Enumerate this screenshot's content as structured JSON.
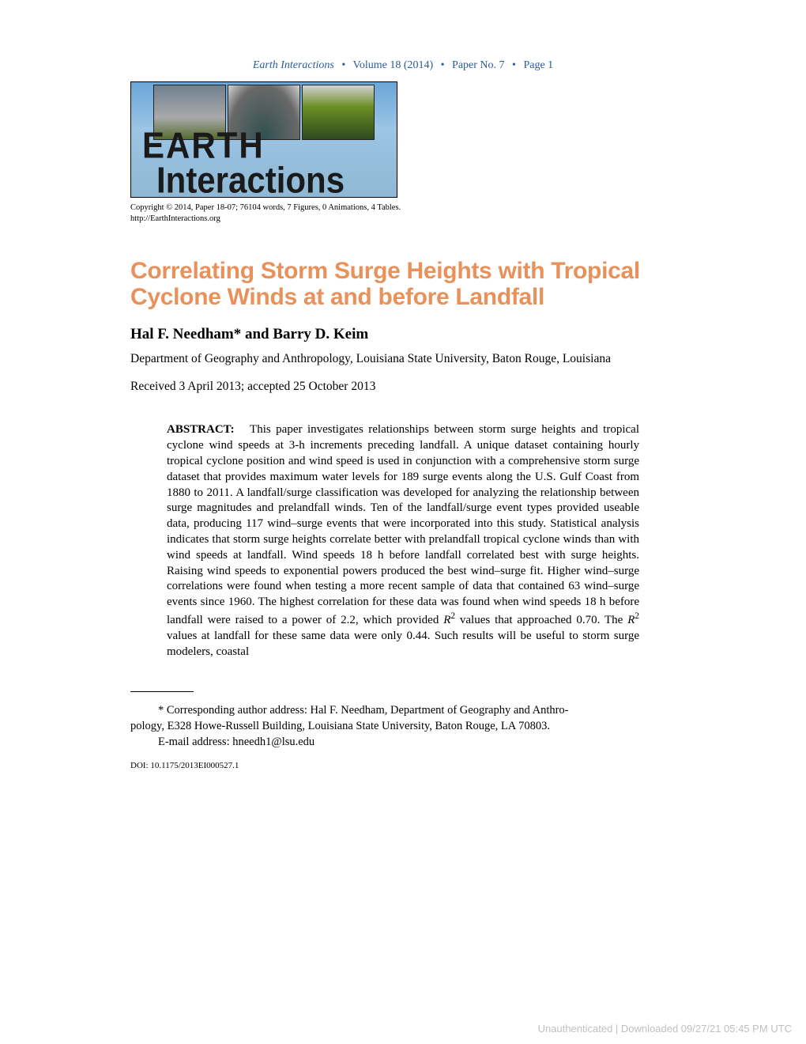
{
  "running_header": {
    "journal": "Earth Interactions",
    "volume": "Volume 18 (2014)",
    "paper_no": "Paper No. 7",
    "page": "Page 1",
    "color": "#2a5a9e"
  },
  "logo": {
    "line1": "EARTH",
    "line2": "Interactions",
    "bg_gradient_top": "#6aa6d8",
    "bg_gradient_bottom": "#8fb8d4"
  },
  "copyright": {
    "line1": "Copyright © 2014, Paper 18-07; 76104 words, 7 Figures, 0 Animations, 4 Tables.",
    "line2": "http://EarthInteractions.org"
  },
  "title": "Correlating Storm Surge Heights with Tropical Cyclone Winds at and before Landfall",
  "title_color": "#e8915a",
  "authors": "Hal F. Needham* and Barry D. Keim",
  "affiliation": "Department of Geography and Anthropology, Louisiana State University, Baton Rouge, Louisiana",
  "dates": "Received 3 April 2013; accepted 25 October 2013",
  "abstract": {
    "label": "ABSTRACT:",
    "body_pre": "This paper investigates relationships between storm surge heights and tropical cyclone wind speeds at 3-h increments preceding landfall. A unique dataset containing hourly tropical cyclone position and wind speed is used in conjunction with a comprehensive storm surge dataset that provides maximum water levels for 189 surge events along the U.S. Gulf Coast from 1880 to 2011. A landfall/surge classification was developed for analyzing the relationship between surge magnitudes and prelandfall winds. Ten of the landfall/surge event types provided useable data, producing 117 wind–surge events that were incorporated into this study. Statistical analysis indicates that storm surge heights correlate better with prelandfall tropical cyclone winds than with wind speeds at landfall. Wind speeds 18 h before landfall correlated best with surge heights. Raising wind speeds to exponential powers produced the best wind–surge fit. Higher wind–surge correlations were found when testing a more recent sample of data that contained 63 wind–surge events since 1960. The highest correlation for these data was found when wind speeds 18 h before landfall were raised to a power of 2.2, which provided ",
    "r2_a": "R",
    "body_mid": " values that approached 0.70. The ",
    "r2_b": "R",
    "body_post": " values at landfall for these same data were only 0.44. Such results will be useful to storm surge modelers, coastal"
  },
  "footnote": {
    "line1": "* Corresponding author address: Hal F. Needham, Department of Geography and Anthro-",
    "line2": "pology, E328 Howe-Russell Building, Louisiana State University, Baton Rouge, LA 70803.",
    "line3": "E-mail address: hneedh1@lsu.edu"
  },
  "doi": "DOI: 10.1175/2013EI000527.1",
  "watermark": "Unauthenticated | Downloaded 09/27/21 05:45 PM UTC"
}
